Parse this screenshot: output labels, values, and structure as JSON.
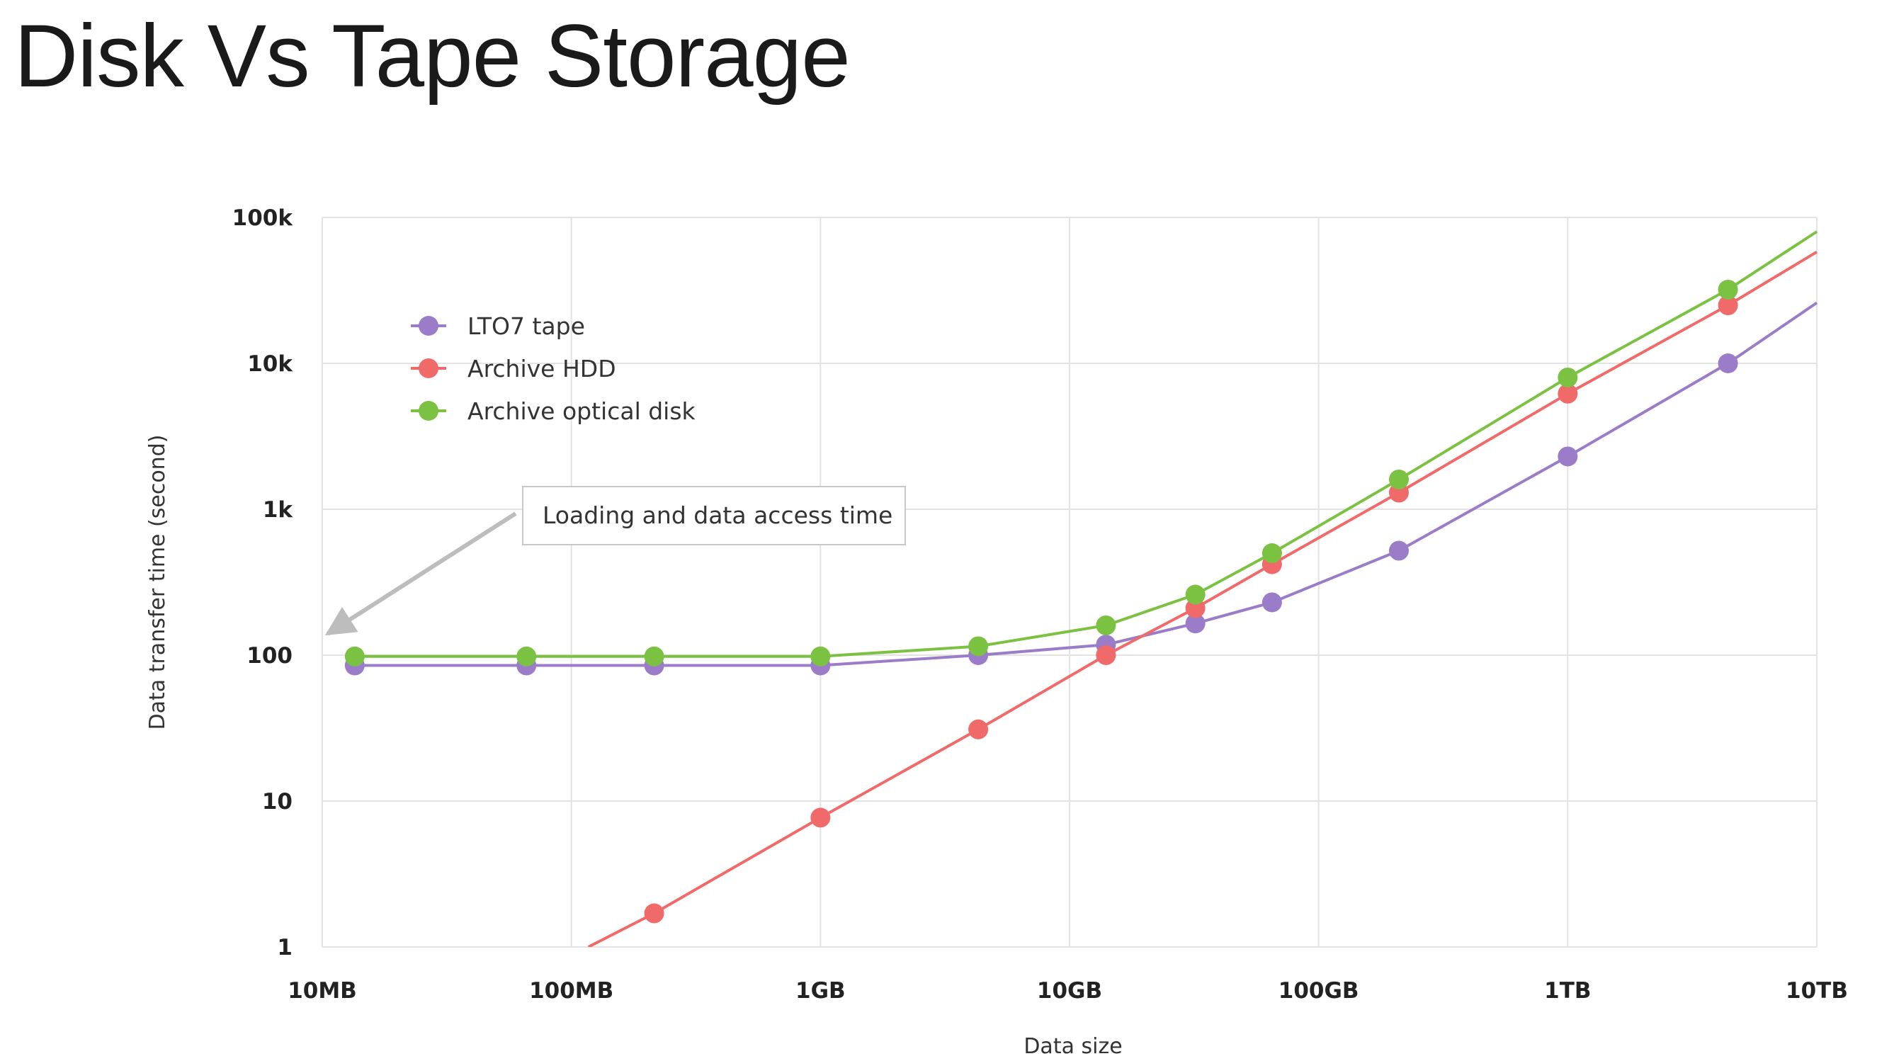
{
  "slide": {
    "title": "Disk Vs Tape Storage"
  },
  "chart_data": {
    "type": "line",
    "title": "",
    "xlabel": "Data size",
    "ylabel": "Data transfer time (second)",
    "x_scale": "log",
    "y_scale": "log",
    "x_ticks": [
      {
        "value": 10,
        "label": "10MB"
      },
      {
        "value": 100,
        "label": "100MB"
      },
      {
        "value": 1000,
        "label": "1GB"
      },
      {
        "value": 10000,
        "label": "10GB"
      },
      {
        "value": 100000,
        "label": "100GB"
      },
      {
        "value": 1000000,
        "label": "1TB"
      },
      {
        "value": 10000000,
        "label": "10TB"
      }
    ],
    "y_ticks": [
      {
        "value": 1,
        "label": "1"
      },
      {
        "value": 10,
        "label": "10"
      },
      {
        "value": 100,
        "label": "100"
      },
      {
        "value": 1000,
        "label": "1k"
      },
      {
        "value": 10000,
        "label": "10k"
      },
      {
        "value": 100000,
        "label": "100k"
      }
    ],
    "xlim_mb": [
      10,
      10000000
    ],
    "ylim": [
      1,
      100000
    ],
    "grid": true,
    "legend_position": "top-left",
    "series": [
      {
        "name": "LTO7 tape",
        "color": "#9b7cc8",
        "x_mb": [
          13.5,
          66,
          215,
          1000,
          4300,
          14000,
          32000,
          65000,
          210000,
          1000000,
          4400000,
          10000000
        ],
        "y_s": [
          85,
          85,
          85,
          85,
          100,
          118,
          165,
          230,
          520,
          2300,
          10000,
          26000
        ],
        "markers": [
          true,
          true,
          true,
          true,
          true,
          true,
          true,
          true,
          true,
          true,
          true,
          false
        ]
      },
      {
        "name": "Archive HDD",
        "color": "#f06a6a",
        "x_mb": [
          117,
          215,
          1000,
          4300,
          14000,
          32000,
          65000,
          210000,
          1000000,
          4400000,
          10000000
        ],
        "y_s": [
          1,
          1.7,
          7.7,
          31,
          100,
          210,
          420,
          1300,
          6200,
          25000,
          58000
        ],
        "markers": [
          false,
          true,
          true,
          true,
          true,
          true,
          true,
          true,
          true,
          true,
          false
        ]
      },
      {
        "name": "Archive optical disk",
        "color": "#7cc242",
        "x_mb": [
          13.5,
          66,
          215,
          1000,
          4300,
          14000,
          32000,
          65000,
          210000,
          1000000,
          4400000,
          10000000
        ],
        "y_s": [
          98,
          98,
          98,
          98,
          115,
          160,
          260,
          500,
          1600,
          8000,
          32000,
          80000
        ],
        "markers": [
          true,
          true,
          true,
          true,
          true,
          true,
          true,
          true,
          true,
          true,
          true,
          false
        ]
      }
    ],
    "annotations": [
      {
        "text": "Loading and data access time",
        "arrow_to": {
          "x_mb": 10.5,
          "y_s": 140
        }
      }
    ]
  }
}
